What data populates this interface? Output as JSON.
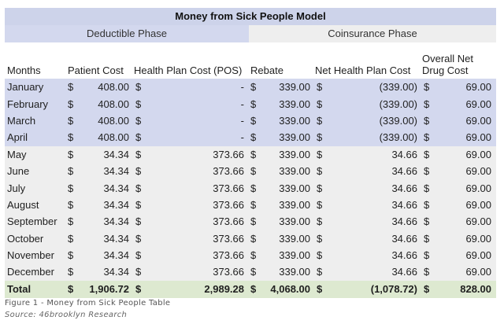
{
  "table": {
    "title": "Money from Sick People Model",
    "phases": {
      "deductible": "Deductible Phase",
      "coinsurance": "Coinsurance Phase"
    },
    "columns": {
      "months": "Months",
      "patient_cost": "Patient Cost",
      "health_plan_cost": "Health Plan Cost (POS)",
      "rebate": "Rebate",
      "net_health_plan_cost": "Net Health Plan Cost",
      "overall_net_line1": "Overall Net",
      "overall_net_line2": "Drug Cost"
    },
    "currency_symbol": "$",
    "rows": [
      {
        "month": "January",
        "phase": "deductible",
        "patient": "408.00",
        "plan": "-",
        "rebate": "339.00",
        "net": "(339.00)",
        "overall": "69.00"
      },
      {
        "month": "February",
        "phase": "deductible",
        "patient": "408.00",
        "plan": "-",
        "rebate": "339.00",
        "net": "(339.00)",
        "overall": "69.00"
      },
      {
        "month": "March",
        "phase": "deductible",
        "patient": "408.00",
        "plan": "-",
        "rebate": "339.00",
        "net": "(339.00)",
        "overall": "69.00"
      },
      {
        "month": "April",
        "phase": "deductible",
        "patient": "408.00",
        "plan": "-",
        "rebate": "339.00",
        "net": "(339.00)",
        "overall": "69.00"
      },
      {
        "month": "May",
        "phase": "coinsurance",
        "patient": "34.34",
        "plan": "373.66",
        "rebate": "339.00",
        "net": "34.66",
        "overall": "69.00"
      },
      {
        "month": "June",
        "phase": "coinsurance",
        "patient": "34.34",
        "plan": "373.66",
        "rebate": "339.00",
        "net": "34.66",
        "overall": "69.00"
      },
      {
        "month": "July",
        "phase": "coinsurance",
        "patient": "34.34",
        "plan": "373.66",
        "rebate": "339.00",
        "net": "34.66",
        "overall": "69.00"
      },
      {
        "month": "August",
        "phase": "coinsurance",
        "patient": "34.34",
        "plan": "373.66",
        "rebate": "339.00",
        "net": "34.66",
        "overall": "69.00"
      },
      {
        "month": "September",
        "phase": "coinsurance",
        "patient": "34.34",
        "plan": "373.66",
        "rebate": "339.00",
        "net": "34.66",
        "overall": "69.00"
      },
      {
        "month": "October",
        "phase": "coinsurance",
        "patient": "34.34",
        "plan": "373.66",
        "rebate": "339.00",
        "net": "34.66",
        "overall": "69.00"
      },
      {
        "month": "November",
        "phase": "coinsurance",
        "patient": "34.34",
        "plan": "373.66",
        "rebate": "339.00",
        "net": "34.66",
        "overall": "69.00"
      },
      {
        "month": "December",
        "phase": "coinsurance",
        "patient": "34.34",
        "plan": "373.66",
        "rebate": "339.00",
        "net": "34.66",
        "overall": "69.00"
      }
    ],
    "total": {
      "label": "Total",
      "patient": "1,906.72",
      "plan": "2,989.28",
      "rebate": "4,068.00",
      "net": "(1,078.72)",
      "overall": "828.00"
    }
  },
  "caption": "Figure 1 - Money from Sick People Table",
  "source": "Source: 46brooklyn Research",
  "colors": {
    "title_bg": "#cdd3ea",
    "deductible_bg": "#d3d8ee",
    "coinsurance_bg": "#eeeeee",
    "total_bg": "#dde9d0"
  }
}
